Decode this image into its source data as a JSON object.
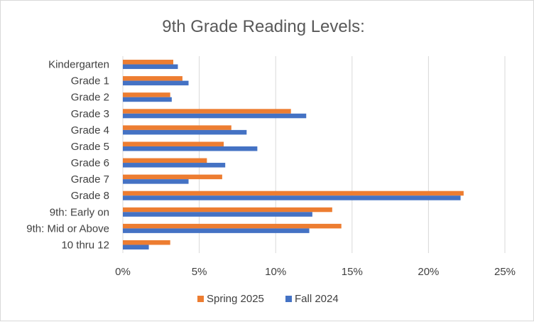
{
  "chart_data": {
    "type": "bar",
    "orientation": "horizontal",
    "title": "9th Grade Reading Levels:",
    "xlabel": "",
    "ylabel": "",
    "xlim": [
      0,
      25
    ],
    "x_ticks": [
      "0%",
      "5%",
      "10%",
      "15%",
      "20%",
      "25%"
    ],
    "x_tick_values": [
      0,
      5,
      10,
      15,
      20,
      25
    ],
    "grid": true,
    "legend_position": "bottom",
    "categories": [
      "Kindergarten",
      "Grade 1",
      "Grade 2",
      "Grade 3",
      "Grade 4",
      "Grade 5",
      "Grade 6",
      "Grade 7",
      "Grade 8",
      "9th: Early on",
      "9th: Mid or Above",
      "10 thru 12"
    ],
    "series": [
      {
        "name": "Spring 2025",
        "color": "#ED7D31",
        "values": [
          3.3,
          3.9,
          3.1,
          11.0,
          7.1,
          6.6,
          5.5,
          6.5,
          22.3,
          13.7,
          14.3,
          3.1
        ]
      },
      {
        "name": "Fall 2024",
        "color": "#4472C4",
        "values": [
          3.6,
          4.3,
          3.2,
          12.0,
          8.1,
          8.8,
          6.7,
          4.3,
          22.1,
          12.4,
          12.2,
          1.7
        ]
      }
    ]
  }
}
